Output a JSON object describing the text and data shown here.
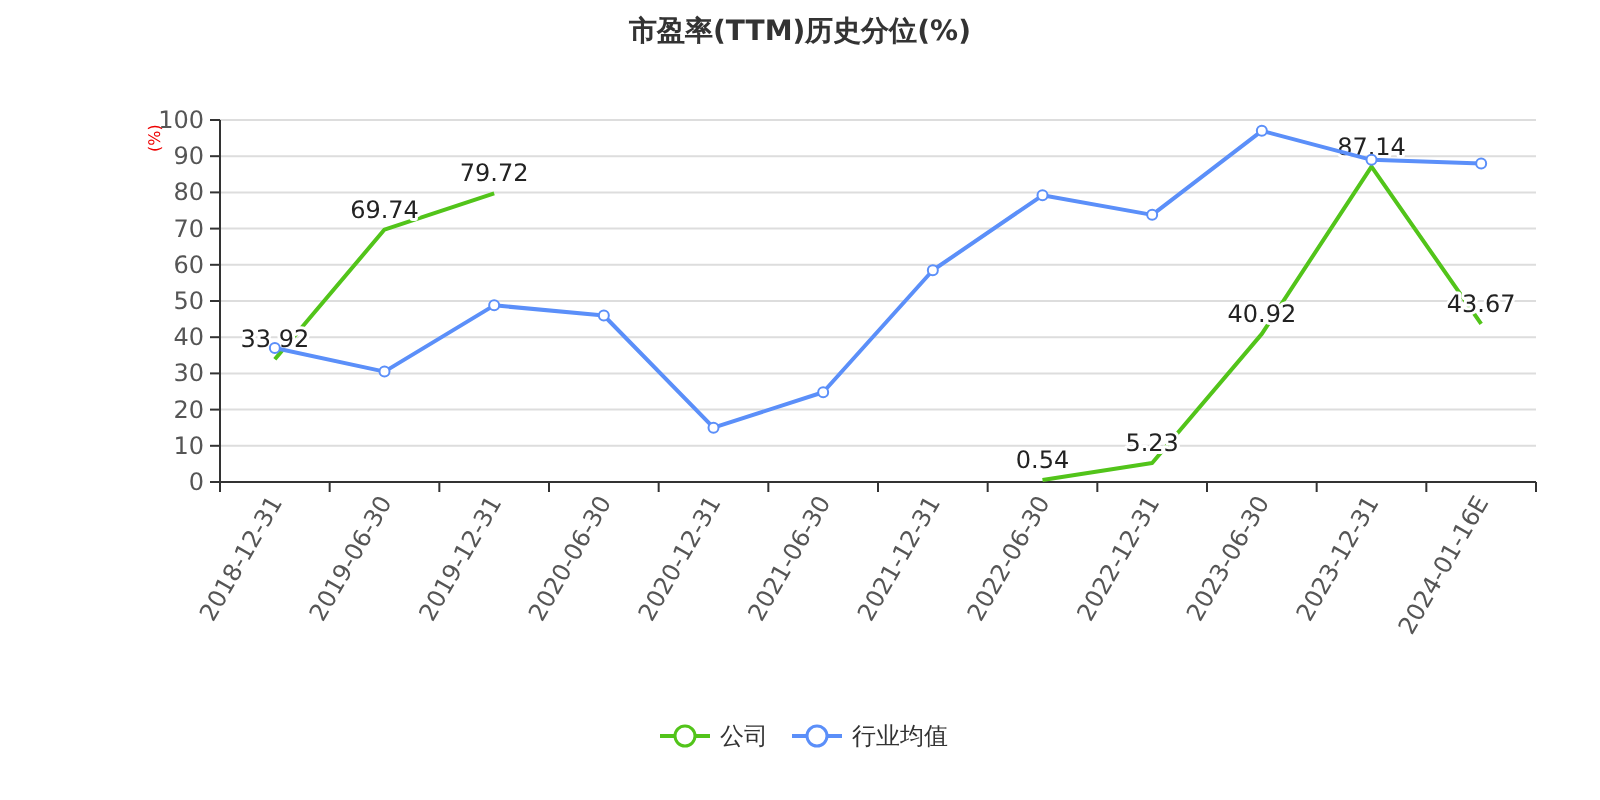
{
  "chart_data": {
    "type": "line",
    "title": "市盈率(TTM)历史分位(%)",
    "ylabel": "(%)",
    "categories": [
      "2018-12-31",
      "2019-06-30",
      "2019-12-31",
      "2020-06-30",
      "2020-12-31",
      "2021-06-30",
      "2021-12-31",
      "2022-06-30",
      "2022-12-31",
      "2023-06-30",
      "2023-12-31",
      "2024-01-16E"
    ],
    "series": [
      {
        "name": "公司",
        "color": "#52c41a",
        "marker": "none",
        "data_labels": true,
        "values": [
          33.92,
          69.74,
          79.72,
          null,
          null,
          null,
          null,
          0.54,
          5.23,
          40.92,
          87.14,
          43.67
        ]
      },
      {
        "name": "行业均值",
        "color": "#5b8ff9",
        "marker": "circle",
        "values": [
          37,
          30.5,
          48.8,
          46,
          15,
          24.8,
          58.5,
          79.2,
          73.8,
          97,
          89,
          88
        ]
      }
    ],
    "ylim": [
      0,
      100
    ],
    "yticks": [
      0,
      10,
      20,
      30,
      40,
      50,
      60,
      70,
      80,
      90,
      100
    ],
    "grid": "y",
    "legend": "bottom"
  }
}
